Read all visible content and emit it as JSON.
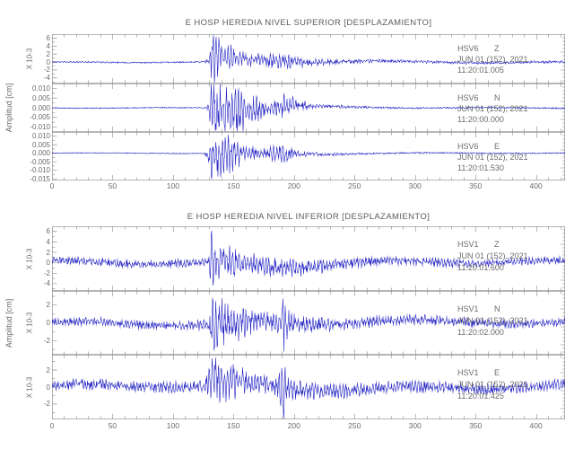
{
  "colors": {
    "background": "#ffffff",
    "trace": "#2424c4",
    "axis": "#7b7b7b",
    "text": "#6b6b6b",
    "title_text": "#5c5c5c"
  },
  "chart_data": [
    {
      "type": "line",
      "title": "E HOSP HEREDIA NIVEL SUPERIOR [DESPLAZAMIENTO]",
      "ylabel": "Amplitud [cm]",
      "xlim": [
        0,
        424
      ],
      "xticks": [
        0,
        50,
        100,
        150,
        200,
        250,
        300,
        350,
        400
      ],
      "xtick_minor_step": 10,
      "grid": false,
      "legend": "none",
      "series": [
        {
          "name": "HSV6       Z",
          "date": "JUN 01 (152), 2021",
          "start_time": "11:20:01.005",
          "scale_label": "X 10-3",
          "yticks": [
            "6",
            "4",
            "2",
            "0",
            "-2",
            "-4"
          ],
          "ylim": [
            -5.4,
            7
          ],
          "envelope_units": "amplitude in y-axis units, symmetric about 0",
          "envelope": [
            [
              0,
              0.22
            ],
            [
              60,
              0.28
            ],
            [
              115,
              0.26
            ],
            [
              126,
              0.35
            ],
            [
              130,
              0.8
            ],
            [
              132,
              6.0
            ],
            [
              134,
              6.2
            ],
            [
              137,
              4.2
            ],
            [
              141,
              2.6
            ],
            [
              146,
              2.9
            ],
            [
              152,
              2.2
            ],
            [
              158,
              1.9
            ],
            [
              166,
              1.6
            ],
            [
              174,
              1.5
            ],
            [
              181,
              1.9
            ],
            [
              188,
              2.4
            ],
            [
              195,
              1.9
            ],
            [
              203,
              1.4
            ],
            [
              212,
              1.1
            ],
            [
              226,
              0.85
            ],
            [
              250,
              0.65
            ],
            [
              290,
              0.5
            ],
            [
              340,
              0.45
            ],
            [
              424,
              0.4
            ]
          ],
          "seed": 7
        },
        {
          "name": "HSV6       N",
          "date": "JUN 01 (152), 2021",
          "start_time": "11:20:00.000",
          "scale_label": "",
          "yticks": [
            "0.010",
            "0.005",
            "0.000",
            "-0.005",
            "-0.010"
          ],
          "ylim": [
            -0.0125,
            0.0125
          ],
          "envelope_units": "amplitude in y-axis units, symmetric about 0",
          "envelope": [
            [
              0,
              0.00035
            ],
            [
              124,
              0.0004
            ],
            [
              128,
              0.0008
            ],
            [
              130,
              0.006
            ],
            [
              132,
              0.0118
            ],
            [
              142,
              0.0112
            ],
            [
              150,
              0.0105
            ],
            [
              157,
              0.0092
            ],
            [
              162,
              0.0052
            ],
            [
              168,
              0.0062
            ],
            [
              175,
              0.0042
            ],
            [
              182,
              0.003
            ],
            [
              187,
              0.0048
            ],
            [
              193,
              0.0056
            ],
            [
              200,
              0.0042
            ],
            [
              207,
              0.0026
            ],
            [
              216,
              0.0016
            ],
            [
              232,
              0.0011
            ],
            [
              258,
              0.0008
            ],
            [
              300,
              0.0006
            ],
            [
              424,
              0.0005
            ]
          ],
          "seed": 13
        },
        {
          "name": "HSV6       E",
          "date": "JUN 01 (152), 2021",
          "start_time": "11:20:01.530",
          "scale_label": "",
          "yticks": [
            "0.010",
            "0.005",
            "0.000",
            "-0.005",
            "-0.010",
            "-0.015"
          ],
          "ylim": [
            -0.016,
            0.0125
          ],
          "envelope_units": "amplitude in y-axis units, symmetric about 0",
          "envelope": [
            [
              0,
              0.00035
            ],
            [
              126,
              0.0004
            ],
            [
              129,
              0.0045
            ],
            [
              132,
              0.0118
            ],
            [
              140,
              0.0105
            ],
            [
              147,
              0.0092
            ],
            [
              154,
              0.0072
            ],
            [
              161,
              0.0048
            ],
            [
              169,
              0.0038
            ],
            [
              177,
              0.0032
            ],
            [
              184,
              0.0046
            ],
            [
              190,
              0.0052
            ],
            [
              197,
              0.0038
            ],
            [
              205,
              0.0022
            ],
            [
              218,
              0.0014
            ],
            [
              242,
              0.0009
            ],
            [
              290,
              0.0006
            ],
            [
              424,
              0.0005
            ]
          ],
          "seed": 21
        }
      ]
    },
    {
      "type": "line",
      "title": "E HOSP HEREDIA NIVEL INFERIOR [DESPLAZAMIENTO]",
      "ylabel": "Amplitud [cm]",
      "xlim": [
        0,
        424
      ],
      "xticks": [
        0,
        50,
        100,
        150,
        200,
        250,
        300,
        350,
        400
      ],
      "xtick_minor_step": 10,
      "grid": false,
      "legend": "none",
      "series": [
        {
          "name": "HSV1       Z",
          "date": "JUN 01 (152), 2021",
          "start_time": "11:20:01.600",
          "scale_label": "X 10-3",
          "yticks": [
            "6",
            "4",
            "2",
            "0",
            "-2",
            "-4"
          ],
          "ylim": [
            -5.4,
            7
          ],
          "envelope_units": "amplitude in y-axis units, symmetric about 0",
          "envelope": [
            [
              0,
              0.75
            ],
            [
              40,
              0.9
            ],
            [
              80,
              0.8
            ],
            [
              118,
              0.9
            ],
            [
              126,
              1.0
            ],
            [
              130,
              1.6
            ],
            [
              132,
              5.8
            ],
            [
              134,
              5.2
            ],
            [
              137,
              3.2
            ],
            [
              142,
              2.5
            ],
            [
              148,
              2.8
            ],
            [
              155,
              2.2
            ],
            [
              164,
              1.9
            ],
            [
              173,
              2.1
            ],
            [
              183,
              1.8
            ],
            [
              192,
              2.1
            ],
            [
              203,
              1.7
            ],
            [
              218,
              1.4
            ],
            [
              242,
              1.15
            ],
            [
              275,
              1.0
            ],
            [
              330,
              0.9
            ],
            [
              424,
              0.85
            ]
          ],
          "seed": 29
        },
        {
          "name": "HSV1       N",
          "date": "JUN 01 (152), 2021",
          "start_time": "11:20:02.000",
          "scale_label": "X 10-3",
          "yticks": [
            "2",
            "0",
            "-2"
          ],
          "ylim": [
            -3.6,
            3.6
          ],
          "envelope_units": "amplitude in y-axis units, symmetric about 0",
          "envelope": [
            [
              0,
              0.5
            ],
            [
              45,
              0.58
            ],
            [
              90,
              0.52
            ],
            [
              118,
              0.56
            ],
            [
              126,
              0.62
            ],
            [
              129,
              1.4
            ],
            [
              132,
              2.9
            ],
            [
              137,
              2.2
            ],
            [
              143,
              2.5
            ],
            [
              150,
              2.1
            ],
            [
              157,
              1.8
            ],
            [
              165,
              1.3
            ],
            [
              174,
              1.05
            ],
            [
              183,
              1.15
            ],
            [
              188,
              1.5
            ],
            [
              189.5,
              3.4
            ],
            [
              191.5,
              3.4
            ],
            [
              193,
              1.7
            ],
            [
              200,
              1.15
            ],
            [
              212,
              0.92
            ],
            [
              232,
              0.78
            ],
            [
              262,
              0.68
            ],
            [
              310,
              0.6
            ],
            [
              370,
              0.55
            ],
            [
              424,
              0.52
            ]
          ],
          "seed": 35
        },
        {
          "name": "HSV1       E",
          "date": "JUN 01 (152), 2021",
          "start_time": "11:20:01.425",
          "scale_label": "X 10-3",
          "yticks": [
            "2",
            "0",
            "-2"
          ],
          "ylim": [
            -3.8,
            3.8
          ],
          "envelope_units": "amplitude in y-axis units, symmetric about 0",
          "envelope": [
            [
              0,
              0.62
            ],
            [
              35,
              0.78
            ],
            [
              68,
              0.66
            ],
            [
              100,
              0.74
            ],
            [
              120,
              0.7
            ],
            [
              126,
              0.78
            ],
            [
              129,
              1.7
            ],
            [
              132,
              2.7
            ],
            [
              138,
              2.3
            ],
            [
              145,
              2.0
            ],
            [
              152,
              1.75
            ],
            [
              160,
              1.45
            ],
            [
              170,
              1.15
            ],
            [
              180,
              1.05
            ],
            [
              187,
              1.25
            ],
            [
              189,
              3.7
            ],
            [
              191.5,
              3.7
            ],
            [
              194,
              1.4
            ],
            [
              204,
              1.1
            ],
            [
              220,
              0.98
            ],
            [
              245,
              0.88
            ],
            [
              280,
              0.78
            ],
            [
              330,
              0.72
            ],
            [
              424,
              0.66
            ]
          ],
          "seed": 41
        }
      ]
    }
  ]
}
